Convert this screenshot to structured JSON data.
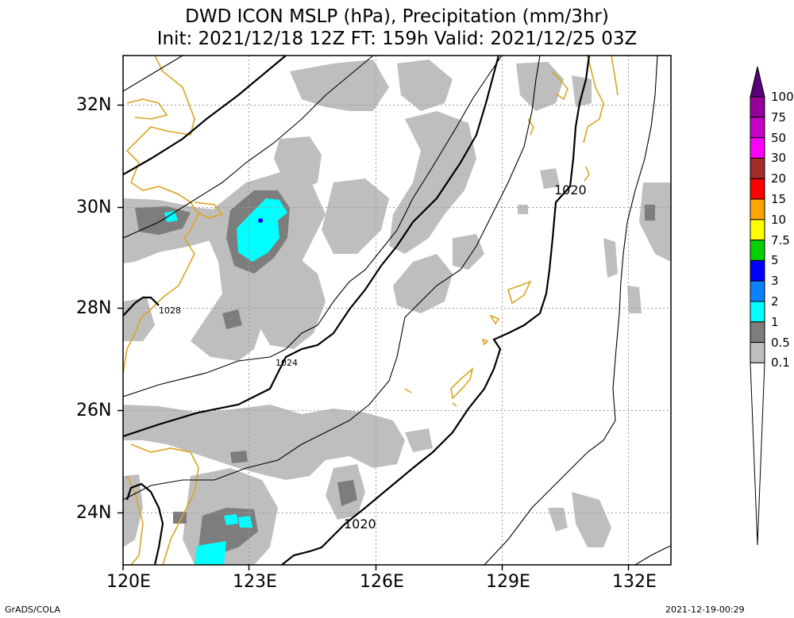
{
  "title": {
    "line1": "DWD ICON MSLP (hPa), Precipitation (mm/3hr)",
    "line2": "Init: 2021/12/18 12Z  FT: 159h  Valid: 2021/12/25 03Z"
  },
  "axes": {
    "lat_labels": [
      "32N",
      "30N",
      "28N",
      "26N",
      "24N"
    ],
    "lon_labels": [
      "120E",
      "123E",
      "126E",
      "129E",
      "132E"
    ]
  },
  "contour_labels": {
    "c1020_north": "1020",
    "c1020_south": "1020",
    "c1024": "1024",
    "c1028": "1028"
  },
  "colorbar": {
    "labels": [
      "100",
      "75",
      "50",
      "30",
      "20",
      "15",
      "10",
      "7.5",
      "5",
      "3",
      "2",
      "1",
      "0.5",
      "0.1"
    ],
    "colors": [
      "#96009b",
      "#c800c8",
      "#ff00ff",
      "#a52a2a",
      "#ff0000",
      "#ffa500",
      "#ffff00",
      "#00d200",
      "#0000ff",
      "#0a82ff",
      "#00ffff",
      "#7d7d7d",
      "#bebebe",
      "#ffffff"
    ],
    "top_arrow_color": "#5a0078"
  },
  "footer": {
    "left": "GrADS/COLA",
    "right": "2021-12-19-00:29"
  }
}
